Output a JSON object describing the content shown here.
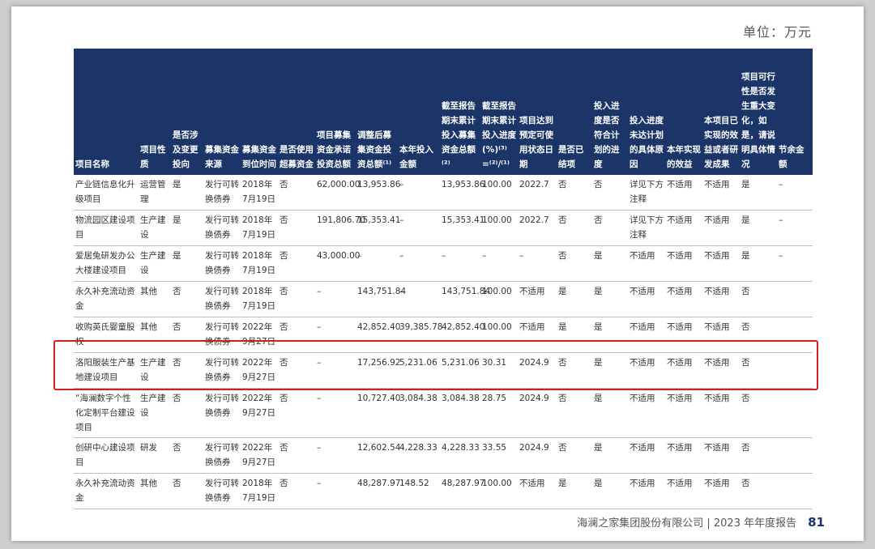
{
  "unit_label": "单位：万元",
  "headers": [
    "项目名称",
    "项目性质",
    "是否涉及变更投向",
    "募集资金来源",
    "募集资金到位时间",
    "是否使用超募资金",
    "项目募集资金承诺投资总额",
    "调整后募集资金投资总额⁽¹⁾",
    "本年投入金额",
    "截至报告期末累计投入募集资金总额⁽²⁾",
    "截至报告期末累计投入进度(%)⁽³⁾=⁽²⁾/⁽¹⁾",
    "项目达到预定可使用状态日期",
    "是否已结项",
    "投入进度是否符合计划的进度",
    "投入进度未达计划的具体原因",
    "本年实现的效益",
    "本项目已实现的效益或者研发成果",
    "项目可行性是否发生重大变化，如是，请说明具体情况",
    "节余金额"
  ],
  "rows": [
    [
      "产业链信息化升级项目",
      "运营管理",
      "是",
      "发行可转换债券",
      "2018年7月19日",
      "否",
      "62,000.00",
      "13,953.86",
      "–",
      "13,953.86",
      "100.00",
      "2022.7",
      "否",
      "否",
      "详见下方注释",
      "不适用",
      "不适用",
      "是",
      "–"
    ],
    [
      "物流园区建设项目",
      "生产建设",
      "是",
      "发行可转换债券",
      "2018年7月19日",
      "否",
      "191,806.70",
      "15,353.41",
      "–",
      "15,353.41",
      "100.00",
      "2022.7",
      "否",
      "否",
      "详见下方注释",
      "不适用",
      "不适用",
      "是",
      "–"
    ],
    [
      "爱居兔研发办公大楼建设项目",
      "生产建设",
      "是",
      "发行可转换债券",
      "2018年7月19日",
      "否",
      "43,000.00",
      "–",
      "–",
      "–",
      "–",
      "–",
      "否",
      "是",
      "不适用",
      "不适用",
      "不适用",
      "是",
      "–"
    ],
    [
      "永久补充流动资金",
      "其他",
      "否",
      "发行可转换债券",
      "2018年7月19日",
      "否",
      "–",
      "143,751.84",
      "–",
      "143,751.84",
      "100.00",
      "不适用",
      "是",
      "是",
      "不适用",
      "不适用",
      "不适用",
      "否",
      ""
    ],
    [
      "收购英氏婴童股权",
      "其他",
      "否",
      "发行可转换债券",
      "2022年9月27日",
      "否",
      "–",
      "42,852.40",
      "39,385.78",
      "42,852.40",
      "100.00",
      "不适用",
      "是",
      "是",
      "不适用",
      "不适用",
      "不适用",
      "否",
      ""
    ],
    [
      "洛阳服装生产基地建设项目",
      "生产建设",
      "否",
      "发行可转换债券",
      "2022年9月27日",
      "否",
      "–",
      "17,256.92",
      "5,231.06",
      "5,231.06",
      "30.31",
      "2024.9",
      "否",
      "是",
      "不适用",
      "不适用",
      "不适用",
      "否",
      ""
    ],
    [
      "“海澜数字个性化定制平台建设项目",
      "生产建设",
      "否",
      "发行可转换债券",
      "2022年9月27日",
      "否",
      "–",
      "10,727.40",
      "3,084.38",
      "3,084.38",
      "28.75",
      "2024.9",
      "否",
      "是",
      "不适用",
      "不适用",
      "不适用",
      "否",
      ""
    ],
    [
      "创研中心建设项目",
      "研发",
      "否",
      "发行可转换债券",
      "2022年9月27日",
      "否",
      "–",
      "12,602.54",
      "4,228.33",
      "4,228.33",
      "33.55",
      "2024.9",
      "否",
      "是",
      "不适用",
      "不适用",
      "不适用",
      "否",
      ""
    ],
    [
      "永久补充流动资金",
      "其他",
      "否",
      "发行可转换债券",
      "2018年7月19日",
      "否",
      "–",
      "48,287.97",
      "148.52",
      "48,287.97",
      "100.00",
      "不适用",
      "是",
      "是",
      "不适用",
      "不适用",
      "不适用",
      "否",
      ""
    ]
  ],
  "footer": {
    "company": "海澜之家集团股份有限公司 | 2023 年年度报告",
    "page_number": "81"
  },
  "colors": {
    "header_bg": "#1b3568",
    "highlight": "#d11f1f"
  }
}
